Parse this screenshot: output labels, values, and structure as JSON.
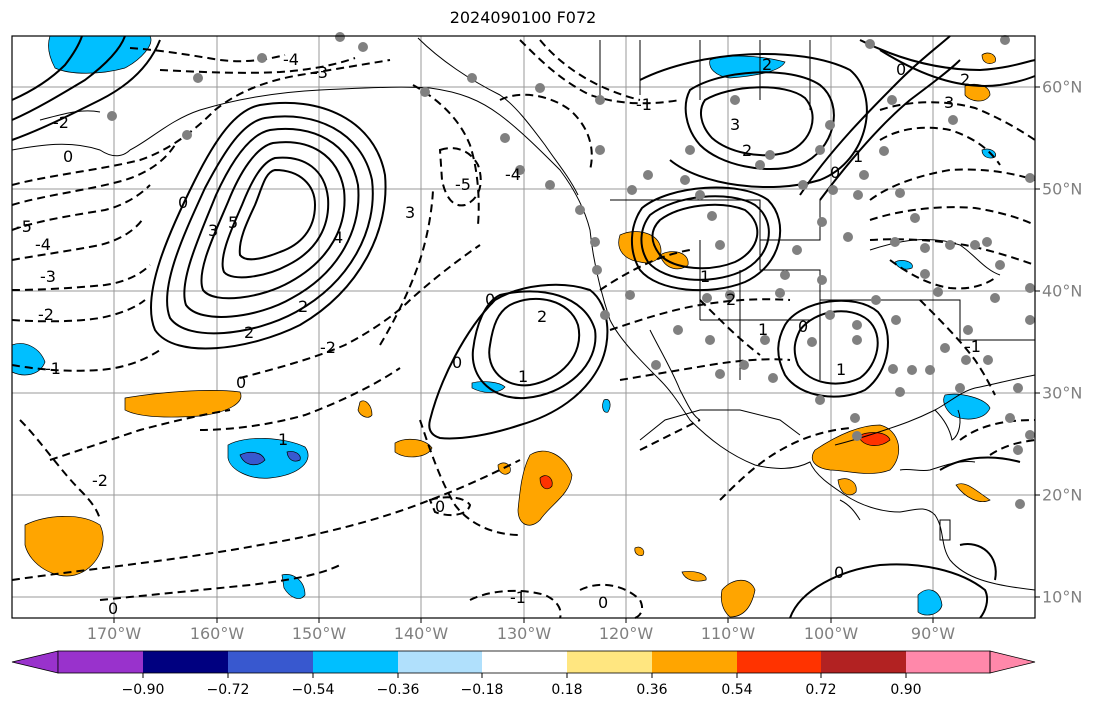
{
  "title": "2024090100 F072",
  "map": {
    "projection": "equirectangular",
    "lon_range": [
      -180,
      -80
    ],
    "lat_range": [
      7,
      64
    ],
    "lon_labels": [
      "170°W",
      "160°W",
      "150°W",
      "140°W",
      "130°W",
      "120°W",
      "110°W",
      "100°W",
      "90°W"
    ],
    "lat_labels": [
      "60°N",
      "50°N",
      "40°N",
      "30°N",
      "20°N",
      "10°N"
    ],
    "colors": {
      "gridlines": "#999999",
      "coastline": "#000000",
      "axis_labels": "#808080"
    }
  },
  "colorbar": {
    "tick_labels": [
      "−0.90",
      "−0.72",
      "−0.54",
      "−0.36",
      "−0.18",
      "0.18",
      "0.36",
      "0.54",
      "0.72",
      "0.90"
    ],
    "colors": [
      "#9932cc",
      "#000080",
      "#3858cf",
      "#00bfff",
      "#b0e0fc",
      "#ffffff",
      "#ffe680",
      "#ffa500",
      "#ff3300",
      "#b22222",
      "#ff88aa"
    ],
    "extend": "both"
  },
  "contour_labels": [
    "-4",
    "-3",
    "-2",
    "-1",
    "0",
    "1",
    "2",
    "3",
    "4",
    "5",
    "-5"
  ],
  "icons": {
    "station_markers": "gray-circle-markers"
  }
}
